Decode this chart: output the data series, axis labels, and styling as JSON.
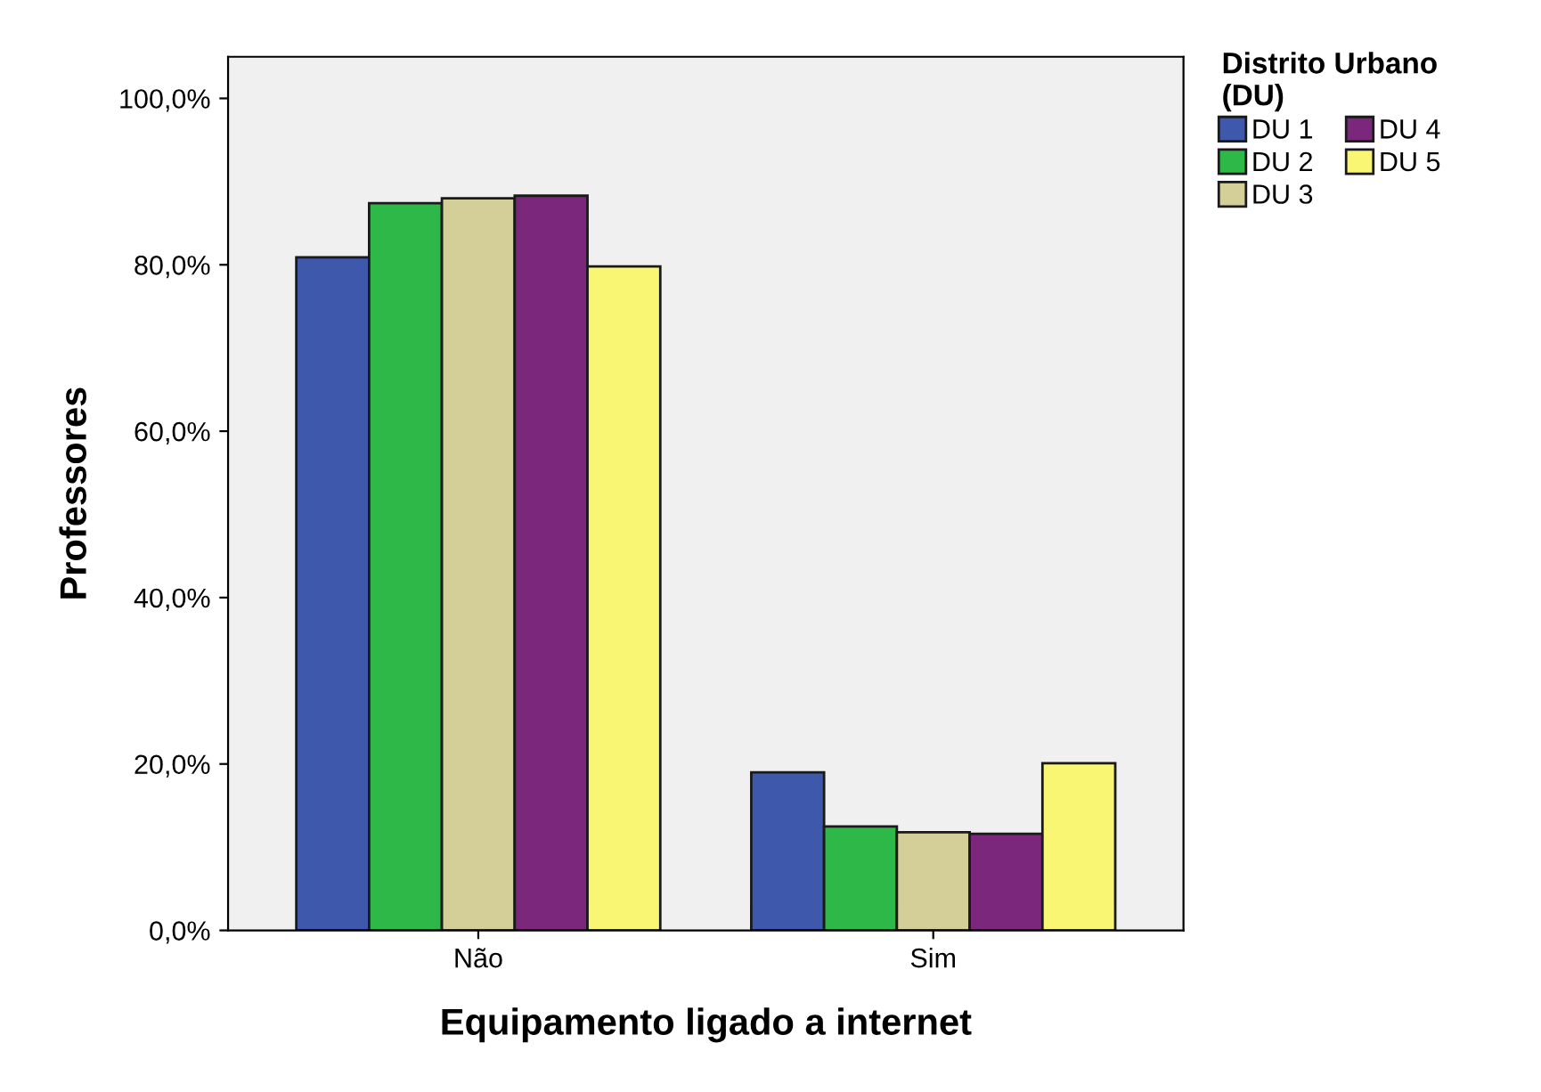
{
  "chart_data": {
    "type": "bar",
    "xlabel": "Equipamento ligado a internet",
    "ylabel": "Professores",
    "legend_title": "Distrito Urbano\n(DU)",
    "categories": [
      "Não",
      "Sim"
    ],
    "series": [
      {
        "name": "DU 1",
        "color": "#3e58ac",
        "values": [
          80.9,
          19.0
        ]
      },
      {
        "name": "DU 2",
        "color": "#2eb848",
        "values": [
          87.4,
          12.5
        ]
      },
      {
        "name": "DU 3",
        "color": "#d4cf98",
        "values": [
          88.0,
          11.8
        ]
      },
      {
        "name": "DU 4",
        "color": "#7b287c",
        "values": [
          88.3,
          11.6
        ]
      },
      {
        "name": "DU 5",
        "color": "#f9f673",
        "values": [
          79.8,
          20.1
        ]
      }
    ],
    "ylim": [
      0,
      105
    ],
    "yticks": [
      {
        "value": 0,
        "label": "0,0%"
      },
      {
        "value": 20,
        "label": "20,0%"
      },
      {
        "value": 40,
        "label": "40,0%"
      },
      {
        "value": 60,
        "label": "60,0%"
      },
      {
        "value": 80,
        "label": "80,0%"
      },
      {
        "value": 100,
        "label": "100,0%"
      }
    ],
    "grid": false,
    "legend": "top right"
  }
}
